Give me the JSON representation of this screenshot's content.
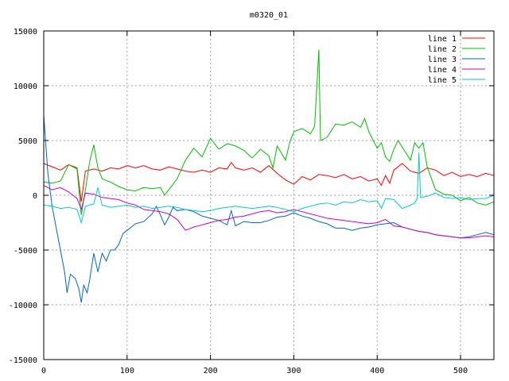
{
  "chart_data": {
    "type": "line",
    "title": "m0320_01",
    "xlabel": "",
    "ylabel": "",
    "xlim": [
      0,
      540
    ],
    "ylim": [
      -15000,
      15000
    ],
    "xticks": [
      0,
      100,
      200,
      300,
      400,
      500
    ],
    "yticks": [
      -15000,
      -10000,
      -5000,
      0,
      5000,
      10000,
      15000
    ],
    "grid": true,
    "legend_position": "top-right",
    "series": [
      {
        "name": "line 1",
        "color": "#ff0000",
        "points": [
          [
            0,
            2900
          ],
          [
            10,
            2600
          ],
          [
            20,
            2300
          ],
          [
            30,
            2800
          ],
          [
            40,
            2500
          ],
          [
            45,
            -600
          ],
          [
            50,
            2200
          ],
          [
            60,
            2400
          ],
          [
            70,
            2200
          ],
          [
            80,
            2500
          ],
          [
            90,
            2400
          ],
          [
            100,
            2700
          ],
          [
            110,
            2500
          ],
          [
            120,
            2700
          ],
          [
            130,
            2400
          ],
          [
            140,
            2300
          ],
          [
            150,
            2600
          ],
          [
            160,
            2400
          ],
          [
            170,
            2200
          ],
          [
            180,
            2100
          ],
          [
            190,
            2300
          ],
          [
            200,
            2100
          ],
          [
            210,
            2500
          ],
          [
            220,
            2400
          ],
          [
            225,
            3000
          ],
          [
            230,
            2500
          ],
          [
            240,
            2300
          ],
          [
            250,
            2500
          ],
          [
            260,
            2100
          ],
          [
            270,
            2700
          ],
          [
            280,
            2000
          ],
          [
            290,
            1400
          ],
          [
            300,
            1000
          ],
          [
            310,
            1700
          ],
          [
            320,
            1400
          ],
          [
            330,
            1900
          ],
          [
            340,
            1800
          ],
          [
            350,
            1600
          ],
          [
            360,
            1900
          ],
          [
            370,
            1500
          ],
          [
            380,
            1700
          ],
          [
            390,
            1300
          ],
          [
            400,
            1500
          ],
          [
            405,
            900
          ],
          [
            410,
            1800
          ],
          [
            415,
            1100
          ],
          [
            420,
            2300
          ],
          [
            430,
            2900
          ],
          [
            440,
            2200
          ],
          [
            450,
            2000
          ],
          [
            460,
            2500
          ],
          [
            470,
            2300
          ],
          [
            480,
            1800
          ],
          [
            490,
            2100
          ],
          [
            500,
            1700
          ],
          [
            510,
            1900
          ],
          [
            520,
            1700
          ],
          [
            530,
            2000
          ],
          [
            540,
            1800
          ]
        ]
      },
      {
        "name": "line 2",
        "color": "#00c000",
        "points": [
          [
            0,
            1200
          ],
          [
            10,
            1100
          ],
          [
            20,
            1300
          ],
          [
            30,
            2800
          ],
          [
            40,
            2400
          ],
          [
            45,
            -1800
          ],
          [
            50,
            500
          ],
          [
            55,
            3000
          ],
          [
            60,
            4600
          ],
          [
            65,
            2500
          ],
          [
            70,
            1500
          ],
          [
            80,
            1200
          ],
          [
            90,
            800
          ],
          [
            100,
            500
          ],
          [
            110,
            400
          ],
          [
            120,
            700
          ],
          [
            130,
            600
          ],
          [
            140,
            700
          ],
          [
            145,
            0
          ],
          [
            150,
            500
          ],
          [
            160,
            1500
          ],
          [
            170,
            3200
          ],
          [
            180,
            4300
          ],
          [
            190,
            3500
          ],
          [
            200,
            5200
          ],
          [
            210,
            4200
          ],
          [
            220,
            4700
          ],
          [
            230,
            4500
          ],
          [
            240,
            4100
          ],
          [
            250,
            3400
          ],
          [
            260,
            4200
          ],
          [
            270,
            3600
          ],
          [
            275,
            2500
          ],
          [
            280,
            4500
          ],
          [
            290,
            3200
          ],
          [
            295,
            4800
          ],
          [
            300,
            5800
          ],
          [
            310,
            6100
          ],
          [
            320,
            5600
          ],
          [
            325,
            6300
          ],
          [
            330,
            13300
          ],
          [
            332,
            5000
          ],
          [
            340,
            5300
          ],
          [
            350,
            6500
          ],
          [
            360,
            6400
          ],
          [
            370,
            6700
          ],
          [
            380,
            6200
          ],
          [
            385,
            7000
          ],
          [
            390,
            5800
          ],
          [
            400,
            4300
          ],
          [
            405,
            4800
          ],
          [
            410,
            3500
          ],
          [
            415,
            3100
          ],
          [
            420,
            4200
          ],
          [
            425,
            5000
          ],
          [
            430,
            4400
          ],
          [
            440,
            3200
          ],
          [
            445,
            4800
          ],
          [
            450,
            4300
          ],
          [
            455,
            4800
          ],
          [
            460,
            2600
          ],
          [
            470,
            500
          ],
          [
            480,
            100
          ],
          [
            490,
            0
          ],
          [
            500,
            -500
          ],
          [
            510,
            -200
          ],
          [
            520,
            -700
          ],
          [
            530,
            -900
          ],
          [
            540,
            -600
          ]
        ]
      },
      {
        "name": "line 3",
        "color": "#0066cc",
        "points": [
          [
            0,
            7300
          ],
          [
            5,
            2000
          ],
          [
            10,
            -1000
          ],
          [
            15,
            -3000
          ],
          [
            20,
            -5000
          ],
          [
            25,
            -7000
          ],
          [
            28,
            -8900
          ],
          [
            32,
            -7200
          ],
          [
            38,
            -7600
          ],
          [
            42,
            -8500
          ],
          [
            45,
            -9800
          ],
          [
            48,
            -8200
          ],
          [
            52,
            -8900
          ],
          [
            55,
            -7800
          ],
          [
            60,
            -5300
          ],
          [
            65,
            -7000
          ],
          [
            70,
            -5300
          ],
          [
            75,
            -6000
          ],
          [
            80,
            -5000
          ],
          [
            85,
            -5000
          ],
          [
            90,
            -4500
          ],
          [
            95,
            -3500
          ],
          [
            100,
            -3200
          ],
          [
            110,
            -2600
          ],
          [
            120,
            -2400
          ],
          [
            130,
            -1700
          ],
          [
            135,
            -1000
          ],
          [
            140,
            -1800
          ],
          [
            145,
            -2700
          ],
          [
            150,
            -2000
          ],
          [
            155,
            -1100
          ],
          [
            160,
            -1400
          ],
          [
            170,
            -1300
          ],
          [
            180,
            -1500
          ],
          [
            190,
            -1900
          ],
          [
            200,
            -2100
          ],
          [
            210,
            -2300
          ],
          [
            220,
            -2700
          ],
          [
            225,
            -1400
          ],
          [
            230,
            -2800
          ],
          [
            240,
            -2400
          ],
          [
            250,
            -2500
          ],
          [
            260,
            -2500
          ],
          [
            270,
            -2300
          ],
          [
            280,
            -2000
          ],
          [
            290,
            -1900
          ],
          [
            300,
            -1600
          ],
          [
            310,
            -1900
          ],
          [
            320,
            -2100
          ],
          [
            330,
            -2400
          ],
          [
            340,
            -2600
          ],
          [
            350,
            -3000
          ],
          [
            360,
            -3000
          ],
          [
            370,
            -3200
          ],
          [
            380,
            -3000
          ],
          [
            390,
            -2900
          ],
          [
            400,
            -2700
          ],
          [
            410,
            -2600
          ],
          [
            420,
            -2500
          ],
          [
            430,
            -2900
          ],
          [
            440,
            -3100
          ],
          [
            450,
            -3300
          ],
          [
            460,
            -3400
          ],
          [
            470,
            -3600
          ],
          [
            480,
            -3700
          ],
          [
            490,
            -3800
          ],
          [
            500,
            -3900
          ],
          [
            510,
            -3800
          ],
          [
            520,
            -3600
          ],
          [
            530,
            -3400
          ],
          [
            540,
            -3600
          ]
        ]
      },
      {
        "name": "line 4",
        "color": "#cc00cc",
        "points": [
          [
            0,
            900
          ],
          [
            10,
            500
          ],
          [
            20,
            700
          ],
          [
            30,
            300
          ],
          [
            40,
            -300
          ],
          [
            45,
            -1300
          ],
          [
            50,
            200
          ],
          [
            60,
            100
          ],
          [
            70,
            -200
          ],
          [
            80,
            -300
          ],
          [
            90,
            -400
          ],
          [
            100,
            -700
          ],
          [
            110,
            -900
          ],
          [
            120,
            -1300
          ],
          [
            130,
            -1400
          ],
          [
            140,
            -1500
          ],
          [
            150,
            -1700
          ],
          [
            160,
            -2200
          ],
          [
            170,
            -3200
          ],
          [
            180,
            -2900
          ],
          [
            190,
            -2700
          ],
          [
            200,
            -2500
          ],
          [
            210,
            -2300
          ],
          [
            220,
            -2200
          ],
          [
            230,
            -2000
          ],
          [
            240,
            -1900
          ],
          [
            250,
            -1700
          ],
          [
            260,
            -1500
          ],
          [
            270,
            -1400
          ],
          [
            280,
            -1600
          ],
          [
            290,
            -1500
          ],
          [
            300,
            -1300
          ],
          [
            310,
            -1500
          ],
          [
            320,
            -1700
          ],
          [
            330,
            -1900
          ],
          [
            340,
            -2100
          ],
          [
            350,
            -2200
          ],
          [
            360,
            -2300
          ],
          [
            370,
            -2400
          ],
          [
            380,
            -2500
          ],
          [
            390,
            -2600
          ],
          [
            400,
            -2500
          ],
          [
            410,
            -2200
          ],
          [
            420,
            -2800
          ],
          [
            430,
            -2900
          ],
          [
            440,
            -3100
          ],
          [
            450,
            -3300
          ],
          [
            460,
            -3400
          ],
          [
            470,
            -3600
          ],
          [
            480,
            -3700
          ],
          [
            490,
            -3800
          ],
          [
            500,
            -3900
          ],
          [
            510,
            -3900
          ],
          [
            520,
            -3800
          ],
          [
            530,
            -3700
          ],
          [
            540,
            -3800
          ]
        ]
      },
      {
        "name": "line 5",
        "color": "#00cccc",
        "points": [
          [
            0,
            -900
          ],
          [
            10,
            -1000
          ],
          [
            20,
            -1200
          ],
          [
            30,
            -1100
          ],
          [
            40,
            -1300
          ],
          [
            45,
            -2500
          ],
          [
            50,
            -1000
          ],
          [
            60,
            -800
          ],
          [
            65,
            700
          ],
          [
            70,
            -900
          ],
          [
            80,
            -1100
          ],
          [
            90,
            -1000
          ],
          [
            100,
            -900
          ],
          [
            110,
            -1100
          ],
          [
            120,
            -1000
          ],
          [
            130,
            -1200
          ],
          [
            140,
            -1100
          ],
          [
            150,
            -1000
          ],
          [
            160,
            -1100
          ],
          [
            170,
            -1300
          ],
          [
            180,
            -1400
          ],
          [
            190,
            -1500
          ],
          [
            200,
            -1400
          ],
          [
            210,
            -1200
          ],
          [
            220,
            -1100
          ],
          [
            230,
            -1000
          ],
          [
            240,
            -1100
          ],
          [
            250,
            -1200
          ],
          [
            260,
            -1100
          ],
          [
            270,
            -1000
          ],
          [
            280,
            -1100
          ],
          [
            290,
            -1300
          ],
          [
            300,
            -1500
          ],
          [
            310,
            -1200
          ],
          [
            320,
            -1000
          ],
          [
            330,
            -800
          ],
          [
            340,
            -700
          ],
          [
            350,
            -900
          ],
          [
            360,
            -600
          ],
          [
            370,
            -700
          ],
          [
            380,
            -400
          ],
          [
            390,
            -600
          ],
          [
            400,
            -500
          ],
          [
            405,
            -1200
          ],
          [
            410,
            -300
          ],
          [
            420,
            -400
          ],
          [
            430,
            -1200
          ],
          [
            440,
            -900
          ],
          [
            445,
            -700
          ],
          [
            448,
            -300
          ],
          [
            450,
            3900
          ],
          [
            452,
            -200
          ],
          [
            460,
            -100
          ],
          [
            470,
            200
          ],
          [
            480,
            -200
          ],
          [
            490,
            -300
          ],
          [
            500,
            -200
          ],
          [
            510,
            -400
          ],
          [
            520,
            -300
          ],
          [
            530,
            -300
          ],
          [
            540,
            0
          ]
        ]
      }
    ]
  }
}
